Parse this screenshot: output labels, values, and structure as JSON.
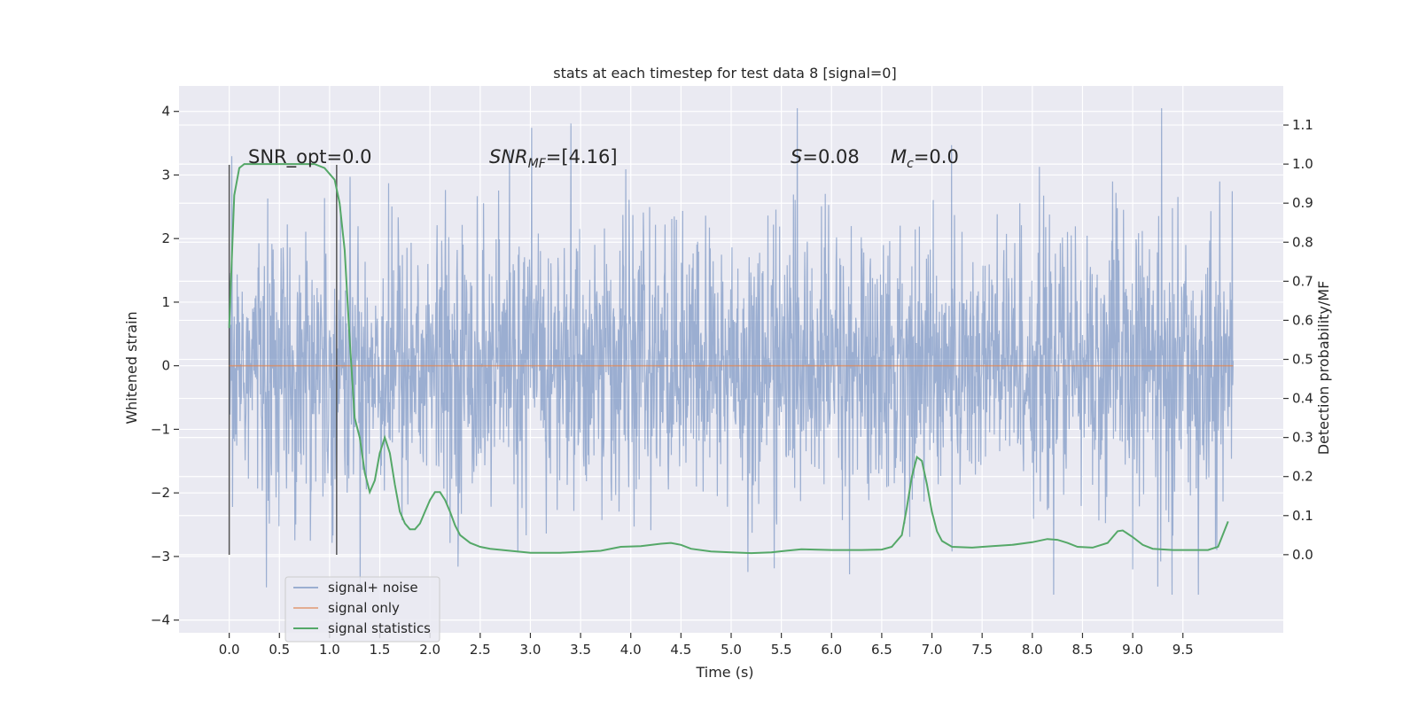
{
  "chart_data": {
    "type": "line",
    "title": "stats at each timestep for test data 8 [signal=0]",
    "xlabel": "Time (s)",
    "ylabel_left": "Whitened strain",
    "ylabel_right": "Detection probability/MF",
    "xlim": [
      -0.5,
      10.5
    ],
    "ylim_left": [
      -4.2,
      4.4
    ],
    "ylim_right": [
      -0.2,
      1.2
    ],
    "x_ticks": [
      0.0,
      0.5,
      1.0,
      1.5,
      2.0,
      2.5,
      3.0,
      3.5,
      4.0,
      4.5,
      5.0,
      5.5,
      6.0,
      6.5,
      7.0,
      7.5,
      8.0,
      8.5,
      9.0,
      9.5
    ],
    "x_tick_labels": [
      "0.0",
      "0.5",
      "1.0",
      "1.5",
      "2.0",
      "2.5",
      "3.0",
      "3.5",
      "4.0",
      "4.5",
      "5.0",
      "5.5",
      "6.0",
      "6.5",
      "7.0",
      "7.5",
      "8.0",
      "8.5",
      "9.0",
      "9.5"
    ],
    "y_left_ticks": [
      4,
      3,
      2,
      1,
      0,
      -1,
      -2,
      -3,
      -4
    ],
    "y_left_tick_labels": [
      "4",
      "3",
      "2",
      "1",
      "0",
      "−1",
      "−2",
      "−3",
      "−4"
    ],
    "y_right_ticks": [
      1.1,
      1.0,
      0.9,
      0.8,
      0.7,
      0.6,
      0.5,
      0.4,
      0.3,
      0.2,
      0.1,
      0.0
    ],
    "y_right_tick_labels": [
      "1.1",
      "1.0",
      "0.9",
      "0.8",
      "0.7",
      "0.6",
      "0.5",
      "0.4",
      "0.3",
      "0.2",
      "0.1",
      "0.0"
    ],
    "grid": true,
    "legend_position": "lower-left",
    "annotations": {
      "snr_opt": "SNR_opt=0.0",
      "snr_mf_main": "SNR",
      "snr_mf_sub": "MF",
      "snr_mf_value": "=[4.16]",
      "s_var": "S",
      "s_value": "=0.08",
      "mc_var": "M",
      "mc_sub": "c",
      "mc_value": "=0.0"
    },
    "vertical_markers": [
      0.0,
      1.07
    ],
    "series": [
      {
        "name": "signal+ noise",
        "axis": "left",
        "color": "#4c72b0",
        "noise_envelope": {
          "x_start": 0.0,
          "x_end": 10.0,
          "dense_band": [
            -1.7,
            1.4
          ],
          "typical_peak_range": [
            -3.6,
            4.05
          ]
        }
      },
      {
        "name": "signal only",
        "axis": "left",
        "color": "#dd8452",
        "x": [
          0.0,
          10.0
        ],
        "y": [
          0.0,
          0.0
        ]
      },
      {
        "name": "signal statistics",
        "axis": "right",
        "color": "#55a868",
        "x": [
          0.0,
          0.05,
          0.1,
          0.15,
          0.25,
          0.4,
          0.55,
          0.7,
          0.85,
          0.95,
          1.05,
          1.1,
          1.15,
          1.2,
          1.25,
          1.3,
          1.35,
          1.4,
          1.45,
          1.5,
          1.55,
          1.6,
          1.65,
          1.7,
          1.75,
          1.8,
          1.85,
          1.9,
          1.95,
          2.0,
          2.05,
          2.1,
          2.15,
          2.2,
          2.25,
          2.3,
          2.4,
          2.5,
          2.6,
          2.8,
          3.0,
          3.3,
          3.5,
          3.7,
          3.9,
          4.1,
          4.3,
          4.4,
          4.5,
          4.6,
          4.8,
          5.0,
          5.2,
          5.4,
          5.7,
          6.0,
          6.3,
          6.5,
          6.6,
          6.7,
          6.75,
          6.8,
          6.85,
          6.9,
          6.95,
          7.0,
          7.05,
          7.1,
          7.2,
          7.4,
          7.6,
          7.8,
          8.0,
          8.15,
          8.25,
          8.35,
          8.45,
          8.6,
          8.75,
          8.85,
          8.9,
          9.0,
          9.1,
          9.2,
          9.4,
          9.6,
          9.75,
          9.85,
          9.95
        ],
        "y": [
          0.58,
          0.92,
          0.99,
          1.0,
          1.0,
          1.0,
          1.0,
          1.0,
          1.0,
          0.99,
          0.96,
          0.9,
          0.78,
          0.55,
          0.35,
          0.3,
          0.21,
          0.16,
          0.19,
          0.26,
          0.3,
          0.26,
          0.18,
          0.11,
          0.08,
          0.065,
          0.065,
          0.08,
          0.11,
          0.14,
          0.16,
          0.16,
          0.14,
          0.11,
          0.075,
          0.05,
          0.03,
          0.02,
          0.015,
          0.01,
          0.005,
          0.005,
          0.007,
          0.01,
          0.02,
          0.022,
          0.028,
          0.03,
          0.025,
          0.015,
          0.008,
          0.006,
          0.004,
          0.006,
          0.014,
          0.012,
          0.012,
          0.013,
          0.02,
          0.05,
          0.12,
          0.2,
          0.25,
          0.24,
          0.18,
          0.11,
          0.06,
          0.035,
          0.02,
          0.018,
          0.022,
          0.025,
          0.032,
          0.04,
          0.038,
          0.03,
          0.02,
          0.018,
          0.03,
          0.06,
          0.062,
          0.045,
          0.025,
          0.015,
          0.012,
          0.012,
          0.012,
          0.02,
          0.085
        ]
      }
    ]
  }
}
